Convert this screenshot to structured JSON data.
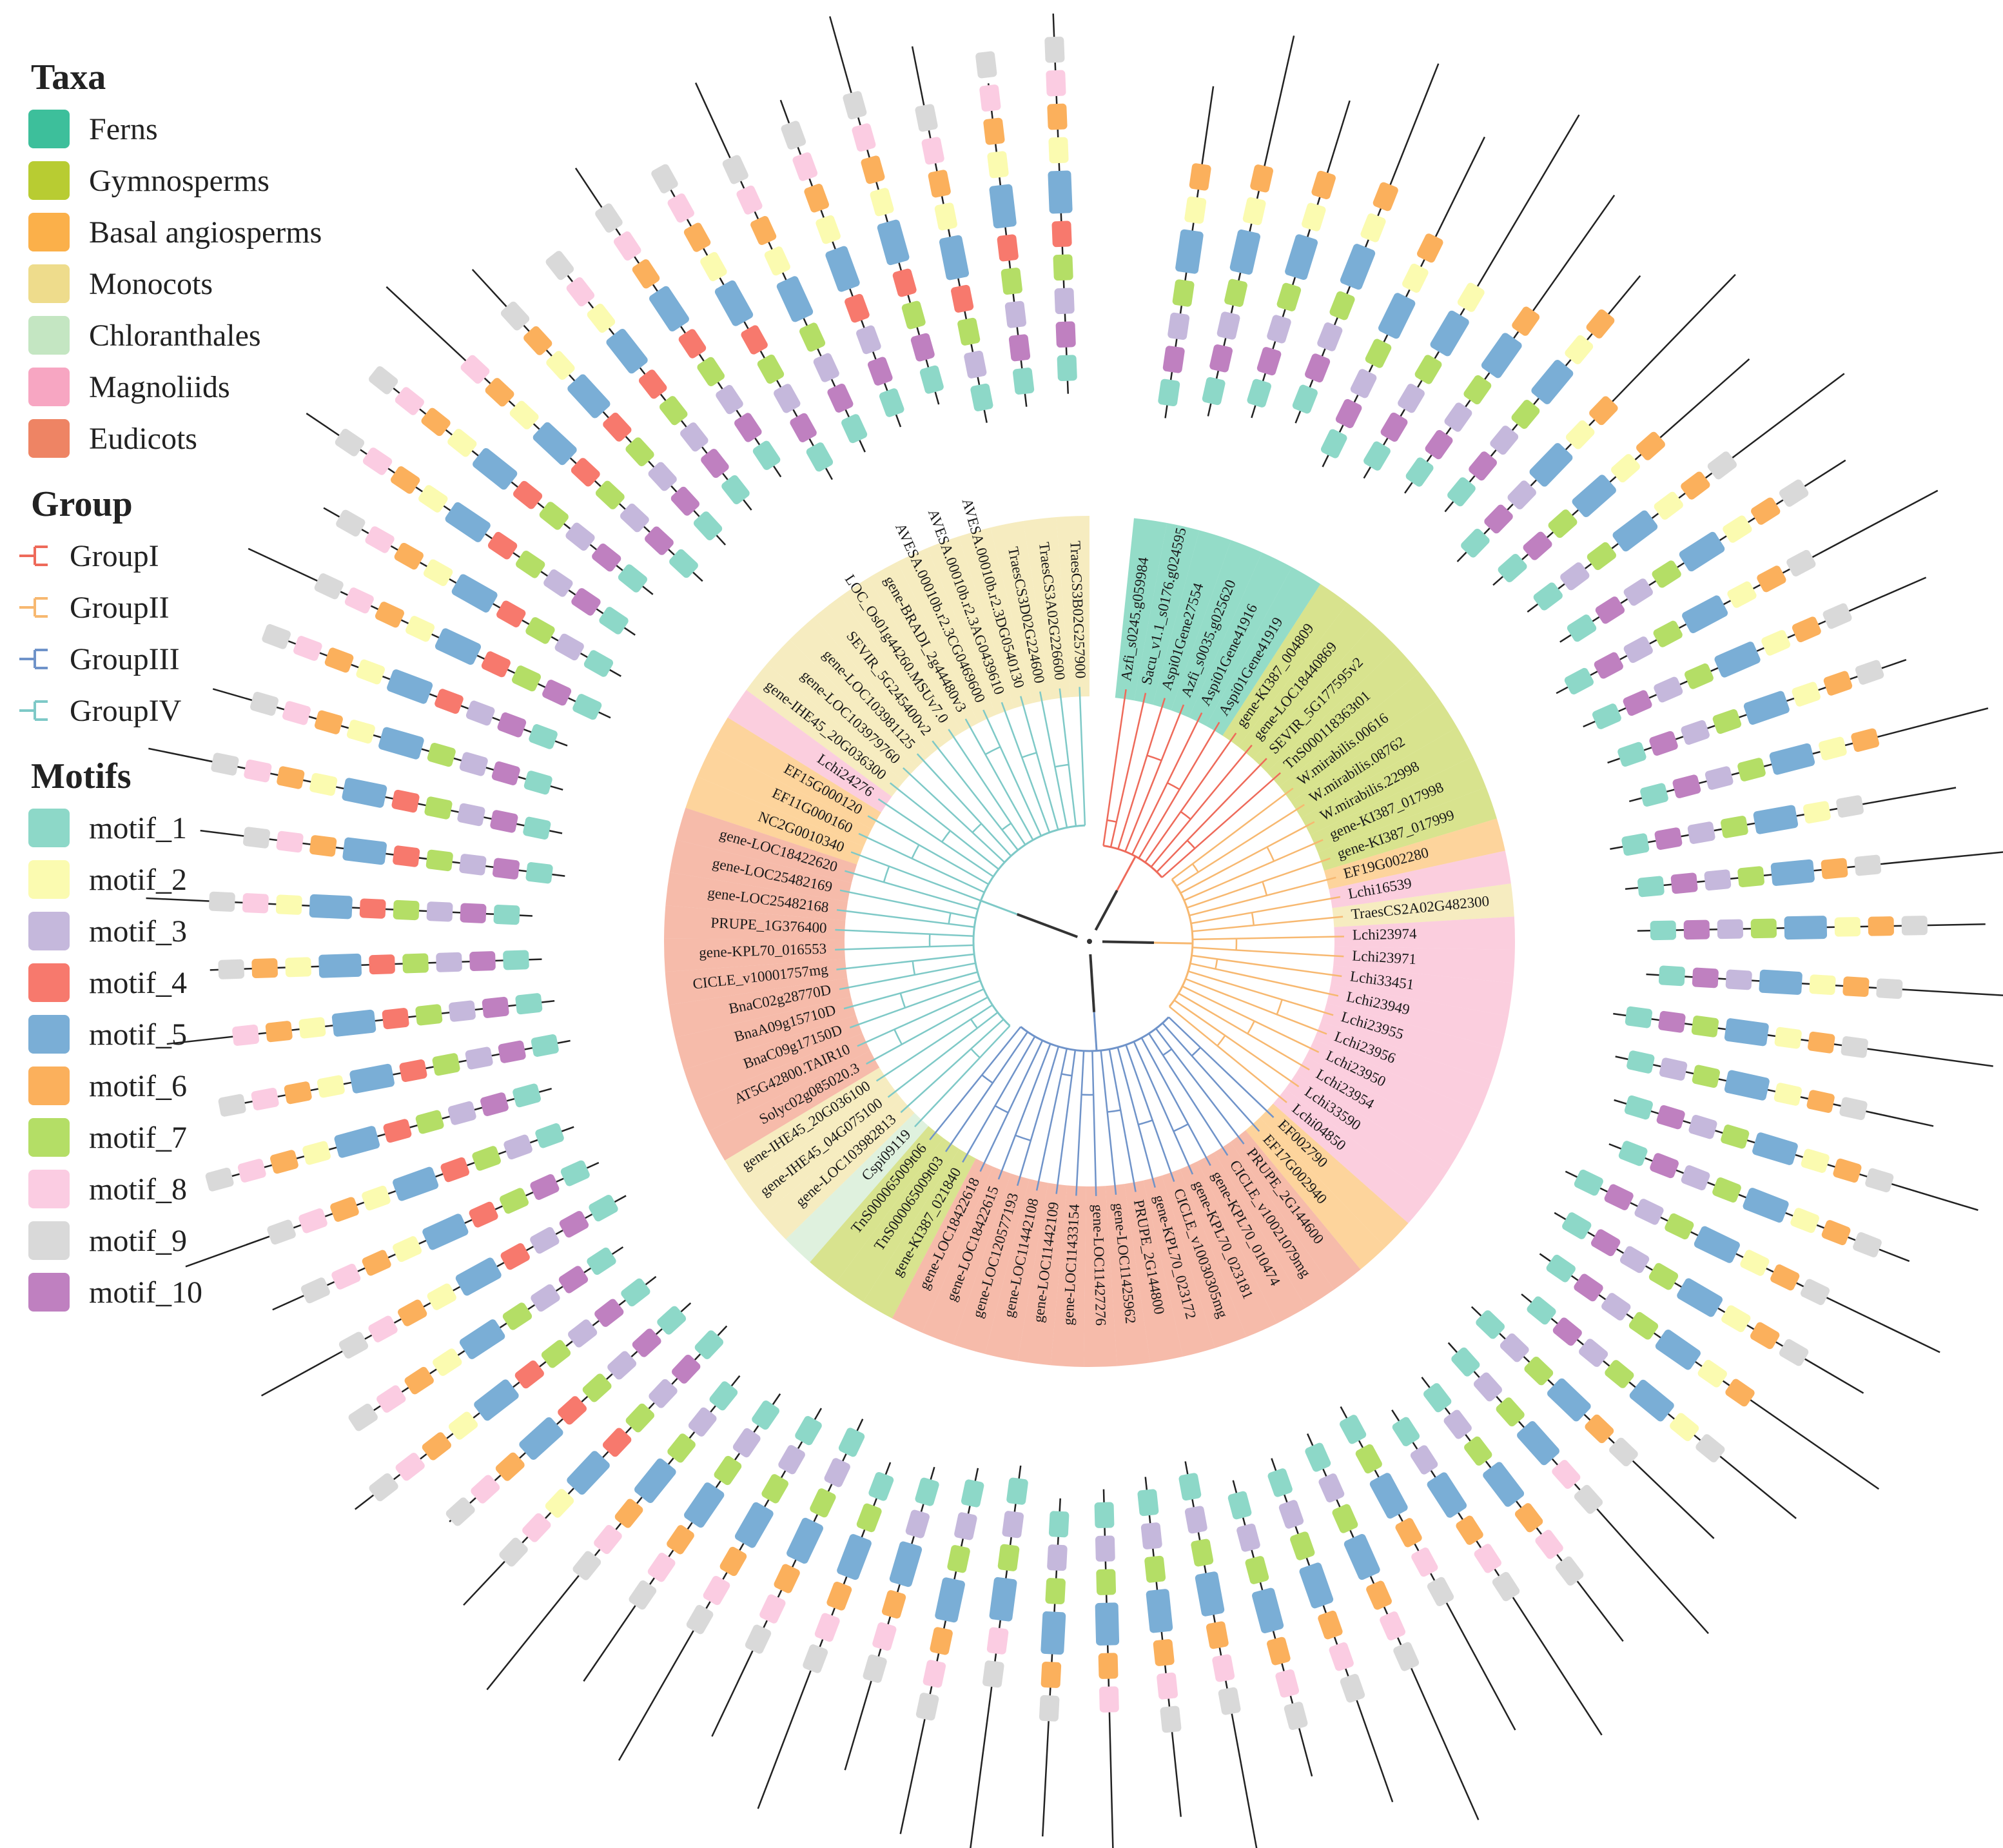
{
  "legend": {
    "taxa_title": "Taxa",
    "taxa": [
      {
        "label": "Ferns",
        "color": "#3dbf9b"
      },
      {
        "label": "Gymnosperms",
        "color": "#b8cc32"
      },
      {
        "label": "Basal  angiosperms",
        "color": "#fbb04a"
      },
      {
        "label": "Monocots",
        "color": "#eedc8c"
      },
      {
        "label": "Chloranthales",
        "color": "#c4e6c2"
      },
      {
        "label": "Magnoliids",
        "color": "#f7a6c2"
      },
      {
        "label": "Eudicots",
        "color": "#ee8464"
      }
    ],
    "group_title": "Group",
    "groups": [
      {
        "label": "GroupI",
        "color": "#ee6a5a"
      },
      {
        "label": "GroupII",
        "color": "#f7b870"
      },
      {
        "label": "GroupIII",
        "color": "#6f93c9"
      },
      {
        "label": "GroupIV",
        "color": "#7ec9c7"
      }
    ],
    "motif_title": "Motifs",
    "motifs": [
      {
        "label": "motif_1",
        "color": "#8dd8c8"
      },
      {
        "label": "motif_2",
        "color": "#fbfbb0"
      },
      {
        "label": "motif_3",
        "color": "#c5b8dc"
      },
      {
        "label": "motif_4",
        "color": "#f7796d"
      },
      {
        "label": "motif_5",
        "color": "#7aaed6"
      },
      {
        "label": "motif_6",
        "color": "#fbb05c"
      },
      {
        "label": "motif_7",
        "color": "#b4de66"
      },
      {
        "label": "motif_8",
        "color": "#fbcce2"
      },
      {
        "label": "motif_9",
        "color": "#d9d9d9"
      },
      {
        "label": "motif_10",
        "color": "#bf80c0"
      }
    ]
  },
  "tree": {
    "leaves": [
      {
        "name": "Azfi_s0245.g059984",
        "taxon": 0,
        "group": 0
      },
      {
        "name": "Sacu_v1.1_s0176.g024595",
        "taxon": 0,
        "group": 0
      },
      {
        "name": "Aspi01Gene27554",
        "taxon": 0,
        "group": 0
      },
      {
        "name": "Azfi_s0035.g025620",
        "taxon": 0,
        "group": 0
      },
      {
        "name": "Aspi01Gene41916",
        "taxon": 0,
        "group": 0
      },
      {
        "name": "Aspi01Gene41919",
        "taxon": 0,
        "group": 0
      },
      {
        "name": "gene-KI387_004809",
        "taxon": 1,
        "group": 0
      },
      {
        "name": "gene-LOC18440869",
        "taxon": 1,
        "group": 0
      },
      {
        "name": "SEVIR_5G177595v2",
        "taxon": 1,
        "group": 0
      },
      {
        "name": "TnS000118363t01",
        "taxon": 1,
        "group": 0
      },
      {
        "name": "W.mirabilis.00616",
        "taxon": 1,
        "group": 1
      },
      {
        "name": "W.mirabilis.08762",
        "taxon": 1,
        "group": 1
      },
      {
        "name": "W.mirabilis.22998",
        "taxon": 1,
        "group": 1
      },
      {
        "name": "gene-KI387_017998",
        "taxon": 1,
        "group": 1
      },
      {
        "name": "gene-KI387_017999",
        "taxon": 1,
        "group": 1
      },
      {
        "name": "EF19G002280",
        "taxon": 2,
        "group": 1
      },
      {
        "name": "Lchi16539",
        "taxon": 5,
        "group": 1
      },
      {
        "name": "TraesCS2A02G482300",
        "taxon": 3,
        "group": 1
      },
      {
        "name": "Lchi23974",
        "taxon": 5,
        "group": 1
      },
      {
        "name": "Lchi23971",
        "taxon": 5,
        "group": 1
      },
      {
        "name": "Lchi33451",
        "taxon": 5,
        "group": 1
      },
      {
        "name": "Lchi23949",
        "taxon": 5,
        "group": 1
      },
      {
        "name": "Lchi23955",
        "taxon": 5,
        "group": 1
      },
      {
        "name": "Lchi23956",
        "taxon": 5,
        "group": 1
      },
      {
        "name": "Lchi23950",
        "taxon": 5,
        "group": 1
      },
      {
        "name": "Lchi23954",
        "taxon": 5,
        "group": 1
      },
      {
        "name": "Lchi33590",
        "taxon": 5,
        "group": 1
      },
      {
        "name": "Lchi04850",
        "taxon": 5,
        "group": 1
      },
      {
        "name": "EF002790",
        "taxon": 2,
        "group": 2
      },
      {
        "name": "EF17G002940",
        "taxon": 2,
        "group": 2
      },
      {
        "name": "PRUPE_2G144600",
        "taxon": 6,
        "group": 2
      },
      {
        "name": "CICLE_v10021079mg",
        "taxon": 6,
        "group": 2
      },
      {
        "name": "gene-KPL70_010474",
        "taxon": 6,
        "group": 2
      },
      {
        "name": "gene-KPL70_023181",
        "taxon": 6,
        "group": 2
      },
      {
        "name": "CICLE_v10030305mg",
        "taxon": 6,
        "group": 2
      },
      {
        "name": "gene-KPL70_023172",
        "taxon": 6,
        "group": 2
      },
      {
        "name": "PRUPE_2G144800",
        "taxon": 6,
        "group": 2
      },
      {
        "name": "gene-LOC11425962",
        "taxon": 6,
        "group": 2
      },
      {
        "name": "gene-LOC11427276",
        "taxon": 6,
        "group": 2
      },
      {
        "name": "gene-LOC11433154",
        "taxon": 6,
        "group": 2
      },
      {
        "name": "gene-LOC11442109",
        "taxon": 6,
        "group": 2
      },
      {
        "name": "gene-LOC11442108",
        "taxon": 6,
        "group": 2
      },
      {
        "name": "gene-LOC120577193",
        "taxon": 6,
        "group": 2
      },
      {
        "name": "gene-LOC18422615",
        "taxon": 6,
        "group": 2
      },
      {
        "name": "gene-LOC18422618",
        "taxon": 6,
        "group": 2
      },
      {
        "name": "gene-KI387_021840",
        "taxon": 1,
        "group": 2
      },
      {
        "name": "TnS000065009t03",
        "taxon": 1,
        "group": 2
      },
      {
        "name": "TnS000065009t06",
        "taxon": 1,
        "group": 2
      },
      {
        "name": "Cspi09119",
        "taxon": 4,
        "group": 3
      },
      {
        "name": "gene-LOC103982813",
        "taxon": 3,
        "group": 3
      },
      {
        "name": "gene-IHE45_04G075100",
        "taxon": 3,
        "group": 3
      },
      {
        "name": "gene-IHE45_20G036100",
        "taxon": 3,
        "group": 3
      },
      {
        "name": "Solyc02g085020.3",
        "taxon": 6,
        "group": 3
      },
      {
        "name": "AT5G42800.TAIR10",
        "taxon": 6,
        "group": 3
      },
      {
        "name": "BnaC09g17150D",
        "taxon": 6,
        "group": 3
      },
      {
        "name": "BnaA09g15710D",
        "taxon": 6,
        "group": 3
      },
      {
        "name": "BnaC02g28770D",
        "taxon": 6,
        "group": 3
      },
      {
        "name": "CICLE_v10001757mg",
        "taxon": 6,
        "group": 3
      },
      {
        "name": "gene-KPL70_016553",
        "taxon": 6,
        "group": 3
      },
      {
        "name": "PRUPE_1G376400",
        "taxon": 6,
        "group": 3
      },
      {
        "name": "gene-LOC25482168",
        "taxon": 6,
        "group": 3
      },
      {
        "name": "gene-LOC25482169",
        "taxon": 6,
        "group": 3
      },
      {
        "name": "gene-LOC18422620",
        "taxon": 6,
        "group": 3
      },
      {
        "name": "NC2G0010340",
        "taxon": 2,
        "group": 3
      },
      {
        "name": "EF11G000160",
        "taxon": 2,
        "group": 3
      },
      {
        "name": "EF15G000120",
        "taxon": 2,
        "group": 3
      },
      {
        "name": "Lchi24276",
        "taxon": 5,
        "group": 3
      },
      {
        "name": "gene-IHE45_20G036300",
        "taxon": 3,
        "group": 3
      },
      {
        "name": "gene-LOC103979760",
        "taxon": 3,
        "group": 3
      },
      {
        "name": "gene-LOC103981125",
        "taxon": 3,
        "group": 3
      },
      {
        "name": "SEVIR_5G245400v2",
        "taxon": 3,
        "group": 3
      },
      {
        "name": "LOC_Os01g44260.MSUv7.0",
        "taxon": 3,
        "group": 3
      },
      {
        "name": "gene-BRADI_2g44480v3",
        "taxon": 3,
        "group": 3
      },
      {
        "name": "AVESA.00010b.r2.3CG0469600",
        "taxon": 3,
        "group": 3
      },
      {
        "name": "AVESA.00010b.r2.3AG0439610",
        "taxon": 3,
        "group": 3
      },
      {
        "name": "AVESA.00010b.r2.3DG0540130",
        "taxon": 3,
        "group": 3
      },
      {
        "name": "TraesCS3D02G224600",
        "taxon": 3,
        "group": 3
      },
      {
        "name": "TraesCS3A02G226600",
        "taxon": 3,
        "group": 3
      },
      {
        "name": "TraesCS3B02G257900",
        "taxon": 3,
        "group": 3
      }
    ]
  }
}
